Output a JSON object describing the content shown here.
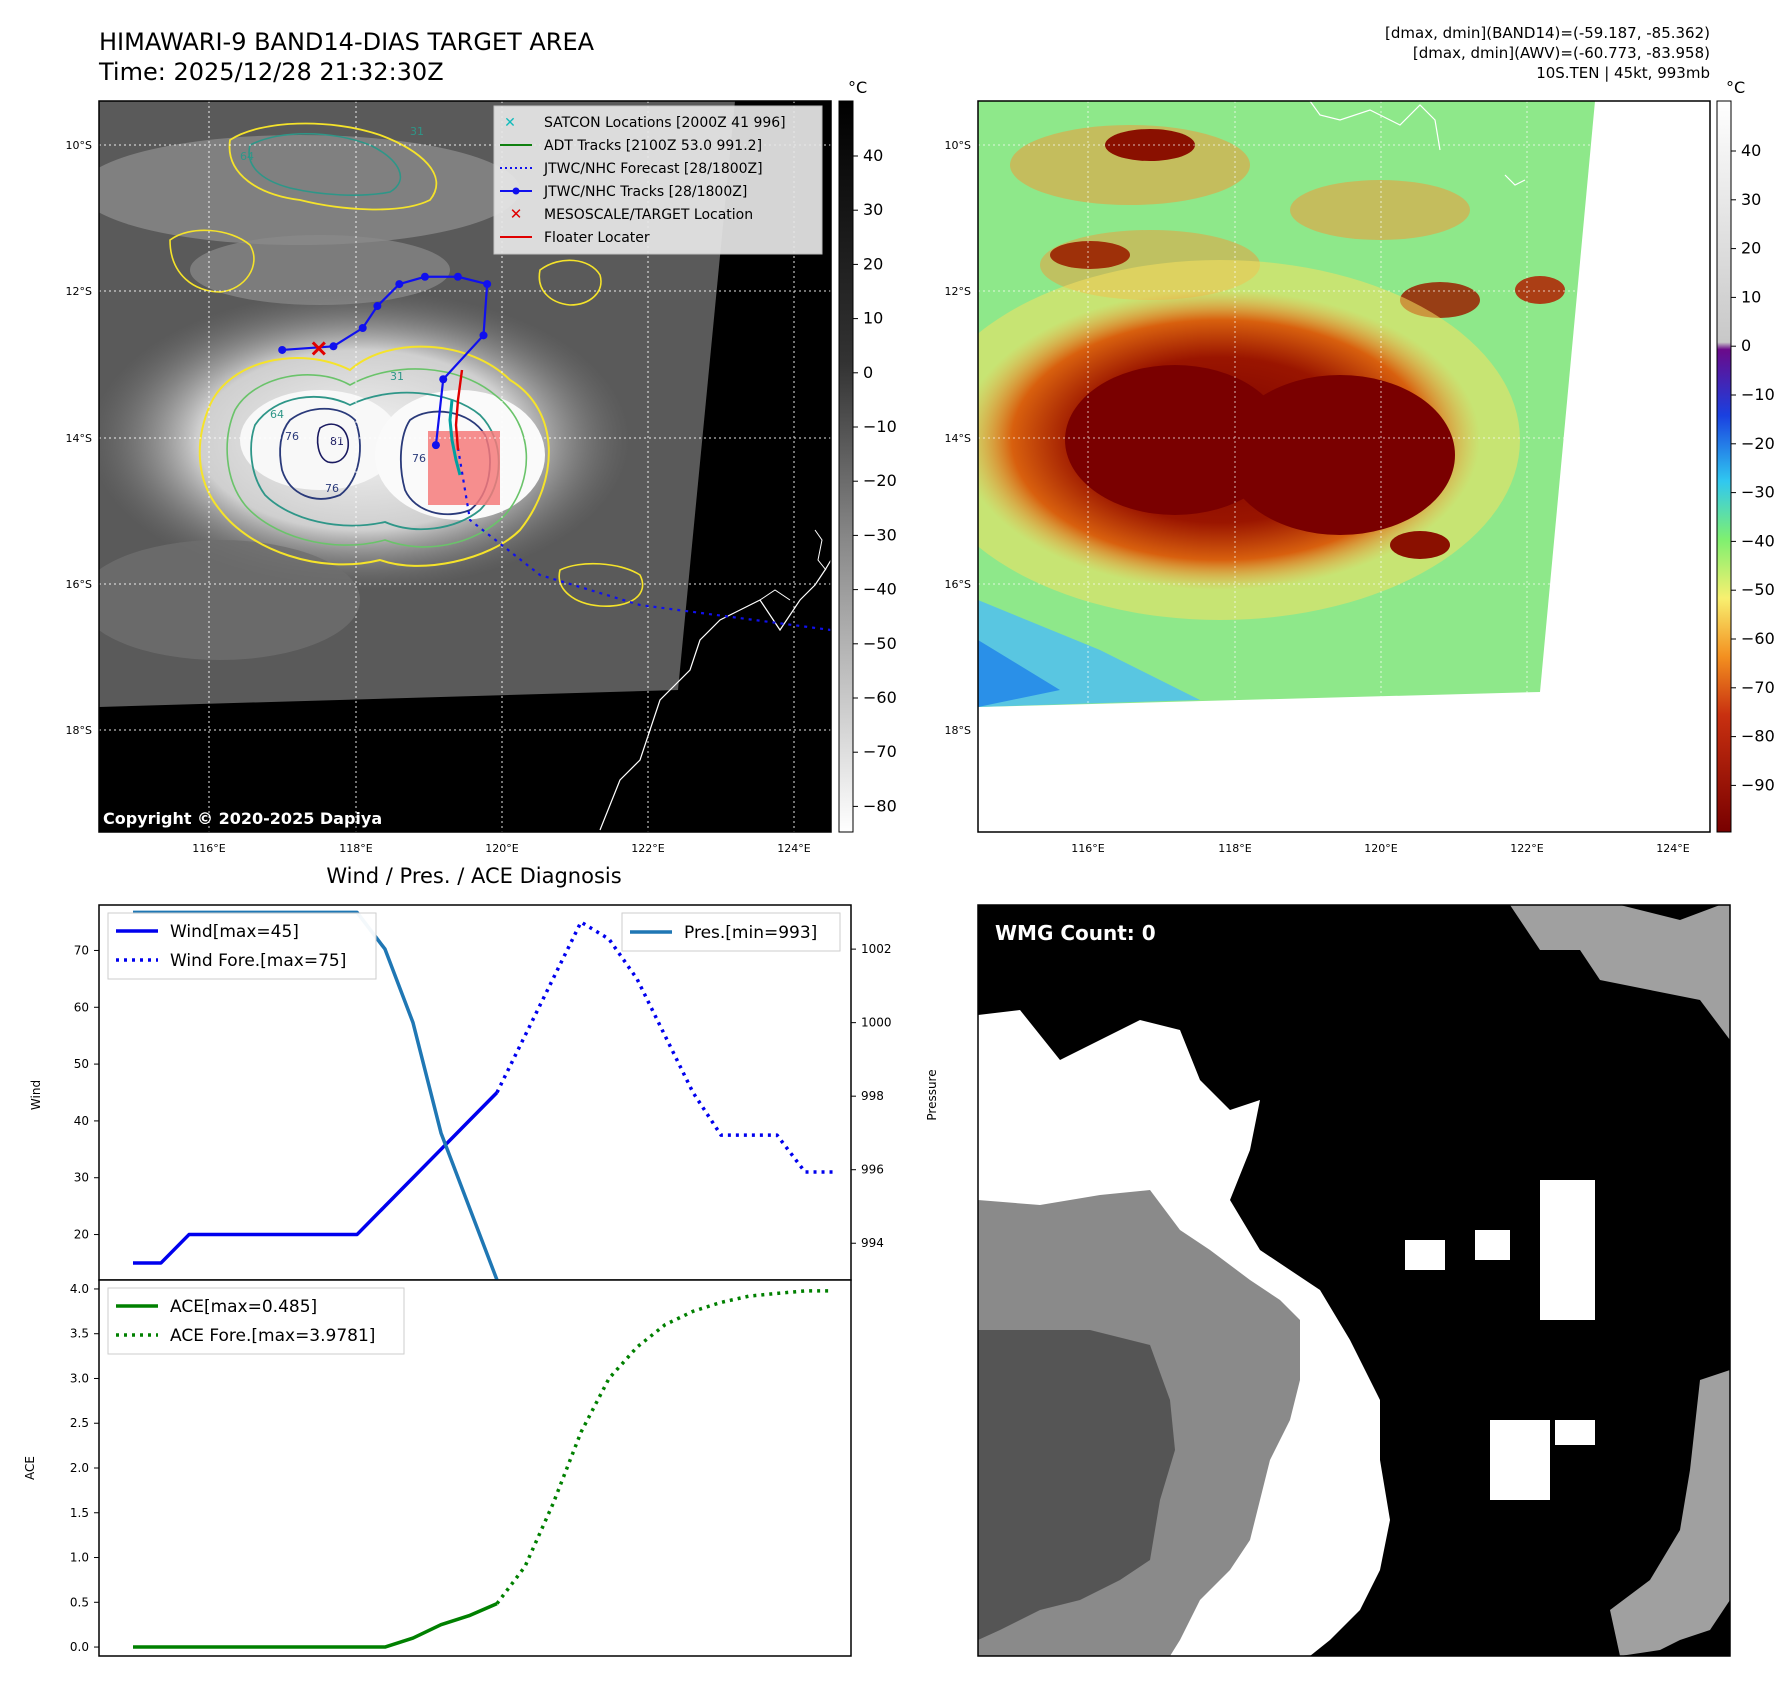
{
  "header": {
    "title_line1": "HIMAWARI-9 BAND14-DIAS TARGET AREA",
    "title_line2": "Time: 2025/12/28 21:32:30Z",
    "info_line1": "[dmax, dmin](BAND14)=(-59.187, -85.362)",
    "info_line2": "[dmax, dmin](AWV)=(-60.773, -83.958)",
    "info_line3": "10S.TEN | 45kt, 993mb"
  },
  "map": {
    "lat_labels": [
      "10°S",
      "12°S",
      "14°S",
      "16°S",
      "18°S"
    ],
    "lon_labels": [
      "116°E",
      "118°E",
      "120°E",
      "122°E",
      "124°E"
    ],
    "copyright": "Copyright © 2020-2025 Dapiya",
    "contour_labels": [
      "31",
      "64",
      "31",
      "76",
      "81",
      "76",
      "76",
      "64"
    ],
    "legend": [
      "SATCON Locations [2000Z 41 996]",
      "ADT Tracks [2100Z 53.0 991.2]",
      "JTWC/NHC Forecast [28/1800Z]",
      "JTWC/NHC Tracks [28/1800Z]",
      "MESOSCALE/TARGET Location",
      "Floater Locater"
    ],
    "jtwc_track": [
      {
        "lon": 117.0,
        "lat": -12.8
      },
      {
        "lon": 117.7,
        "lat": -12.75
      },
      {
        "lon": 118.1,
        "lat": -12.5
      },
      {
        "lon": 118.3,
        "lat": -12.2
      },
      {
        "lon": 118.6,
        "lat": -11.9
      },
      {
        "lon": 118.95,
        "lat": -11.8
      },
      {
        "lon": 119.4,
        "lat": -11.8
      },
      {
        "lon": 119.8,
        "lat": -11.9
      },
      {
        "lon": 119.75,
        "lat": -12.6
      },
      {
        "lon": 119.2,
        "lat": -13.2
      },
      {
        "lon": 119.1,
        "lat": -14.1
      }
    ],
    "target_location": {
      "lon": 117.5,
      "lat": -12.78
    }
  },
  "colorbars": {
    "unit": "°C",
    "ir_ticks": [
      "40",
      "30",
      "20",
      "10",
      "0",
      "−10",
      "−20",
      "−30",
      "−40",
      "−50",
      "−60",
      "−70",
      "−80"
    ],
    "color_ticks": [
      "40",
      "30",
      "20",
      "10",
      "0",
      "−10",
      "−20",
      "−30",
      "−40",
      "−50",
      "−60",
      "−70",
      "−80",
      "−90"
    ]
  },
  "diagnosis": {
    "subtitle": "Wind / Pres. / ACE Diagnosis",
    "wind_axis_label": "Wind",
    "pressure_axis_label": "Pressure",
    "ace_axis_label": "ACE",
    "wind_ticks": [
      "70",
      "60",
      "50",
      "40",
      "30",
      "20"
    ],
    "pressure_ticks": [
      "1002",
      "1000",
      "998",
      "996",
      "994"
    ],
    "ace_ticks": [
      "4.0",
      "3.5",
      "3.0",
      "2.5",
      "2.0",
      "1.5",
      "1.0",
      "0.5",
      "0.0"
    ],
    "legend_wind": "Wind[max=45]",
    "legend_wind_fore": "Wind Fore.[max=75]",
    "legend_pres": "Pres.[min=993]",
    "legend_ace": "ACE[max=0.485]",
    "legend_ace_fore": "ACE Fore.[max=3.9781]"
  },
  "chart_data": [
    {
      "type": "line",
      "title": "Wind / Pres. / ACE Diagnosis",
      "ylabel": "Wind",
      "ylim": [
        12,
        78
      ],
      "series": [
        {
          "name": "Wind[max=45]",
          "color": "#0000ee",
          "style": "solid",
          "x": [
            0,
            1,
            2,
            3,
            4,
            5,
            6,
            7,
            8,
            9,
            10,
            11,
            12,
            13
          ],
          "y": [
            15,
            15,
            20,
            20,
            20,
            20,
            20,
            20,
            20,
            25,
            30,
            35,
            40,
            45
          ]
        },
        {
          "name": "Wind Fore.[max=75]",
          "color": "#0000ee",
          "style": "dotted",
          "x": [
            13,
            14,
            15,
            16,
            17,
            18,
            19,
            20,
            21,
            22,
            23,
            24,
            25
          ],
          "y": [
            45,
            55,
            65,
            75,
            72,
            65,
            55,
            45,
            37.5,
            37.5,
            37.5,
            31,
            31
          ]
        }
      ]
    },
    {
      "type": "line",
      "ylabel": "Pressure",
      "ylim": [
        993,
        1003.2
      ],
      "series": [
        {
          "name": "Pres.[min=993]",
          "color": "#1f77b4",
          "style": "solid",
          "x": [
            0,
            1,
            2,
            3,
            4,
            5,
            6,
            7,
            8,
            9,
            10,
            11,
            12,
            13
          ],
          "y": [
            1003,
            1003,
            1003,
            1003,
            1003,
            1003,
            1003,
            1003,
            1003,
            1002,
            1000,
            997,
            995,
            993
          ]
        }
      ]
    },
    {
      "type": "line",
      "ylabel": "ACE",
      "ylim": [
        -0.1,
        4.1
      ],
      "series": [
        {
          "name": "ACE[max=0.485]",
          "color": "#008000",
          "style": "solid",
          "x": [
            0,
            1,
            2,
            3,
            4,
            5,
            6,
            7,
            8,
            9,
            10,
            11,
            12,
            13
          ],
          "y": [
            0,
            0,
            0,
            0,
            0,
            0,
            0,
            0,
            0,
            0,
            0.1,
            0.25,
            0.35,
            0.485
          ]
        },
        {
          "name": "ACE Fore.[max=3.9781]",
          "color": "#008000",
          "style": "dotted",
          "x": [
            13,
            14,
            15,
            16,
            17,
            18,
            19,
            20,
            21,
            22,
            23,
            24,
            25
          ],
          "y": [
            0.485,
            0.9,
            1.6,
            2.4,
            3.0,
            3.35,
            3.6,
            3.75,
            3.85,
            3.92,
            3.95,
            3.9781,
            3.9781
          ]
        }
      ]
    }
  ],
  "wmg": {
    "label": "WMG Count: 0"
  }
}
